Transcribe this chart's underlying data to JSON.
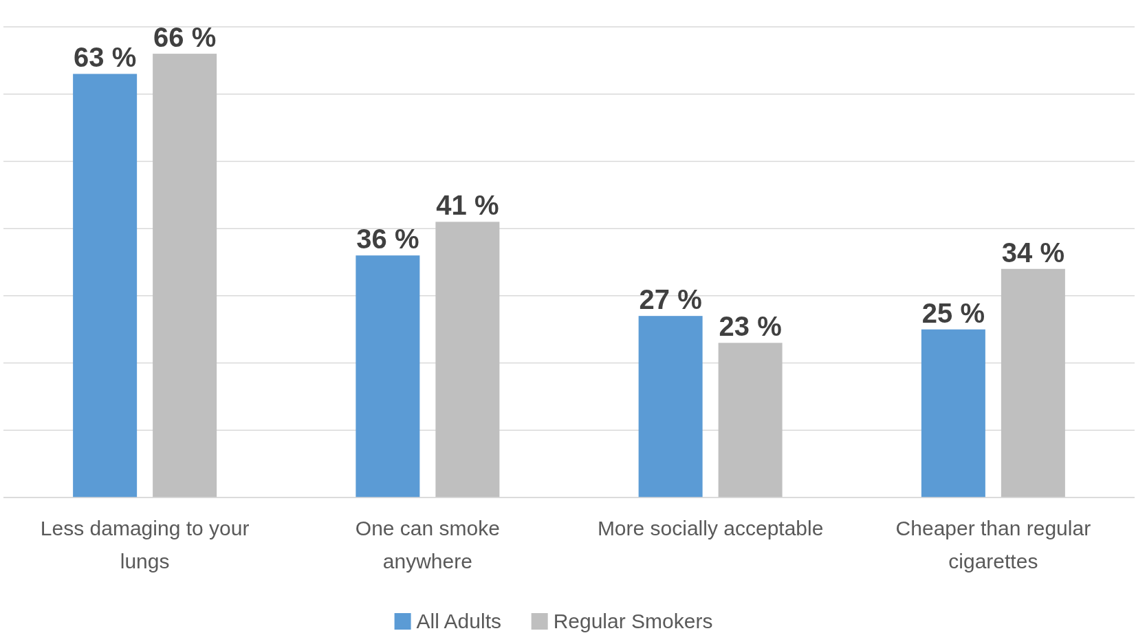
{
  "chart_data": {
    "type": "bar",
    "categories": [
      "Less damaging to your lungs",
      "One can smoke anywhere",
      "More socially acceptable",
      "Cheaper than regular cigarettes"
    ],
    "series": [
      {
        "name": "All Adults",
        "color": "#5b9bd5",
        "values": [
          63,
          36,
          27,
          25
        ],
        "value_labels": [
          "63 %",
          "36 %",
          "27 %",
          "25 %"
        ]
      },
      {
        "name": "Regular Smokers",
        "color": "#bfbfbf",
        "values": [
          66,
          41,
          23,
          34
        ],
        "value_labels": [
          "66 %",
          "41 %",
          "23 %",
          "34 %"
        ]
      }
    ],
    "ylim": [
      0,
      70
    ],
    "yticks": [
      {
        "value": 0,
        "label": null
      },
      {
        "value": 10,
        "label": null
      },
      {
        "value": 20,
        "label": null
      },
      {
        "value": 30,
        "label": null
      },
      {
        "value": 40,
        "label": null
      },
      {
        "value": 50,
        "label": null
      },
      {
        "value": 60,
        "label": null
      },
      {
        "value": 70,
        "label": null
      }
    ],
    "tick_labels": "x",
    "grid": true,
    "legend": "bottom"
  }
}
